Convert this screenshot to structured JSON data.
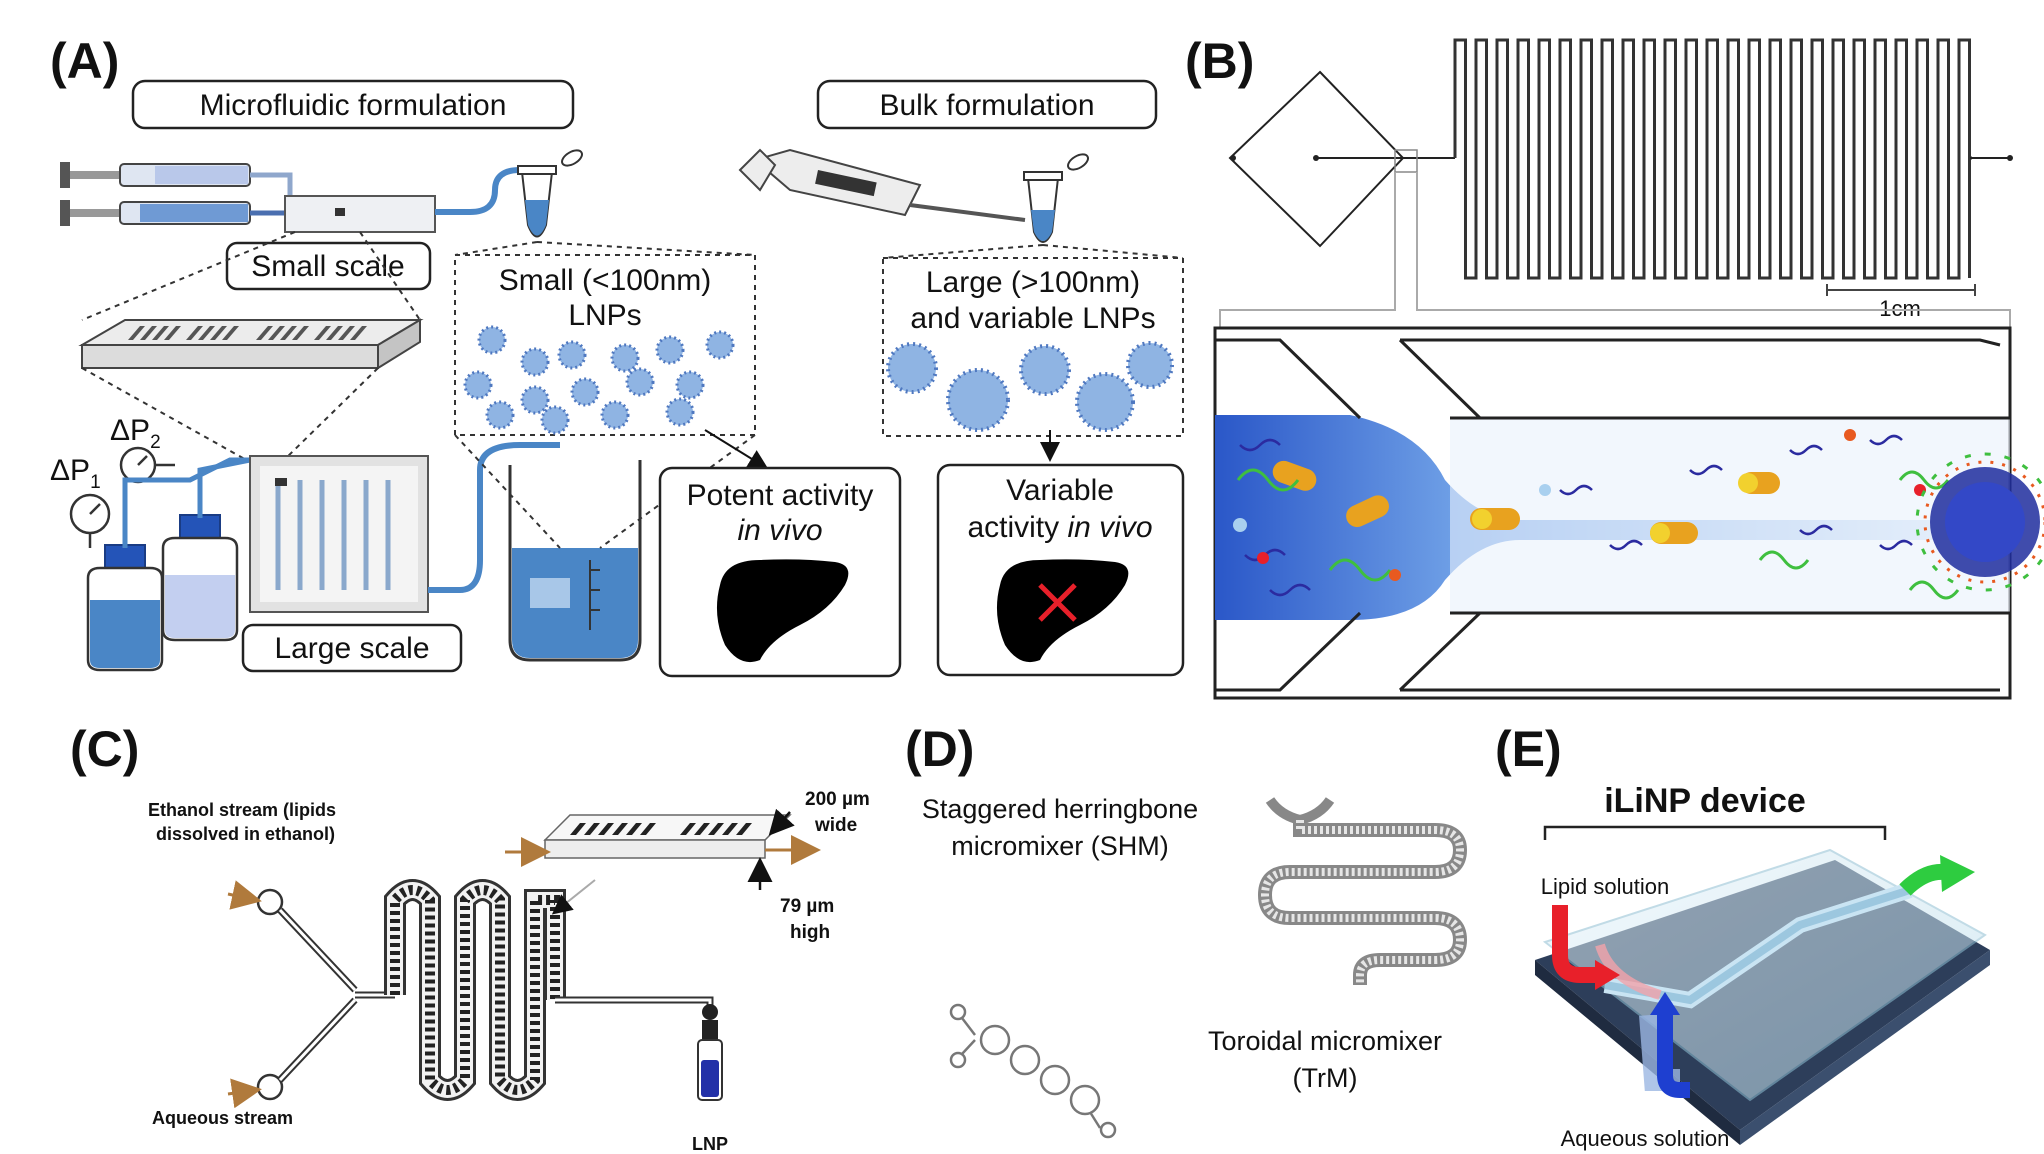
{
  "panels": {
    "a": {
      "letter": "(A)",
      "microfluidic_title": "Microfluidic formulation",
      "bulk_title": "Bulk formulation",
      "small_scale": "Small scale",
      "large_scale": "Large scale",
      "dp1": "ΔP",
      "dp1_sub": "1",
      "dp2": "ΔP",
      "dp2_sub": "2",
      "small_lnps_line1": "Small (<100nm)",
      "small_lnps_line2": "LNPs",
      "large_lnps_line1": "Large (>100nm)",
      "large_lnps_line2": "and variable LNPs",
      "potent_line1": "Potent activity",
      "potent_line2": "in vivo",
      "variable_line1": "Variable",
      "variable_line2_prefix": "activity ",
      "variable_line2_italic": "in vivo"
    },
    "b": {
      "letter": "(B)",
      "scale_bar": "1cm"
    },
    "c": {
      "letter": "(C)",
      "ethanol_line1": "Ethanol stream (lipids",
      "ethanol_line2": "dissolved in ethanol)",
      "aqueous": "Aqueous stream",
      "width_line1": "200 µm",
      "width_line2": "wide",
      "height_line1": "79 µm",
      "height_line2": "high",
      "lnp": "LNP"
    },
    "d": {
      "letter": "(D)",
      "shm_line1": "Staggered herringbone",
      "shm_line2": "micromixer (SHM)",
      "trm_line1": "Toroidal micromixer",
      "trm_line2": "(TrM)"
    },
    "e": {
      "letter": "(E)",
      "title": "iLiNP device",
      "lipid": "Lipid solution",
      "aqueous": "Aqueous solution"
    }
  },
  "colors": {
    "fluid_blue": "#4a86c6",
    "light_blue": "#bcd6ee",
    "lipid_red": "#e8202a",
    "aqueous_blue": "#1e3fd0",
    "arrow_green": "#2ecc40",
    "nanoparticle": "#7aa5da"
  }
}
